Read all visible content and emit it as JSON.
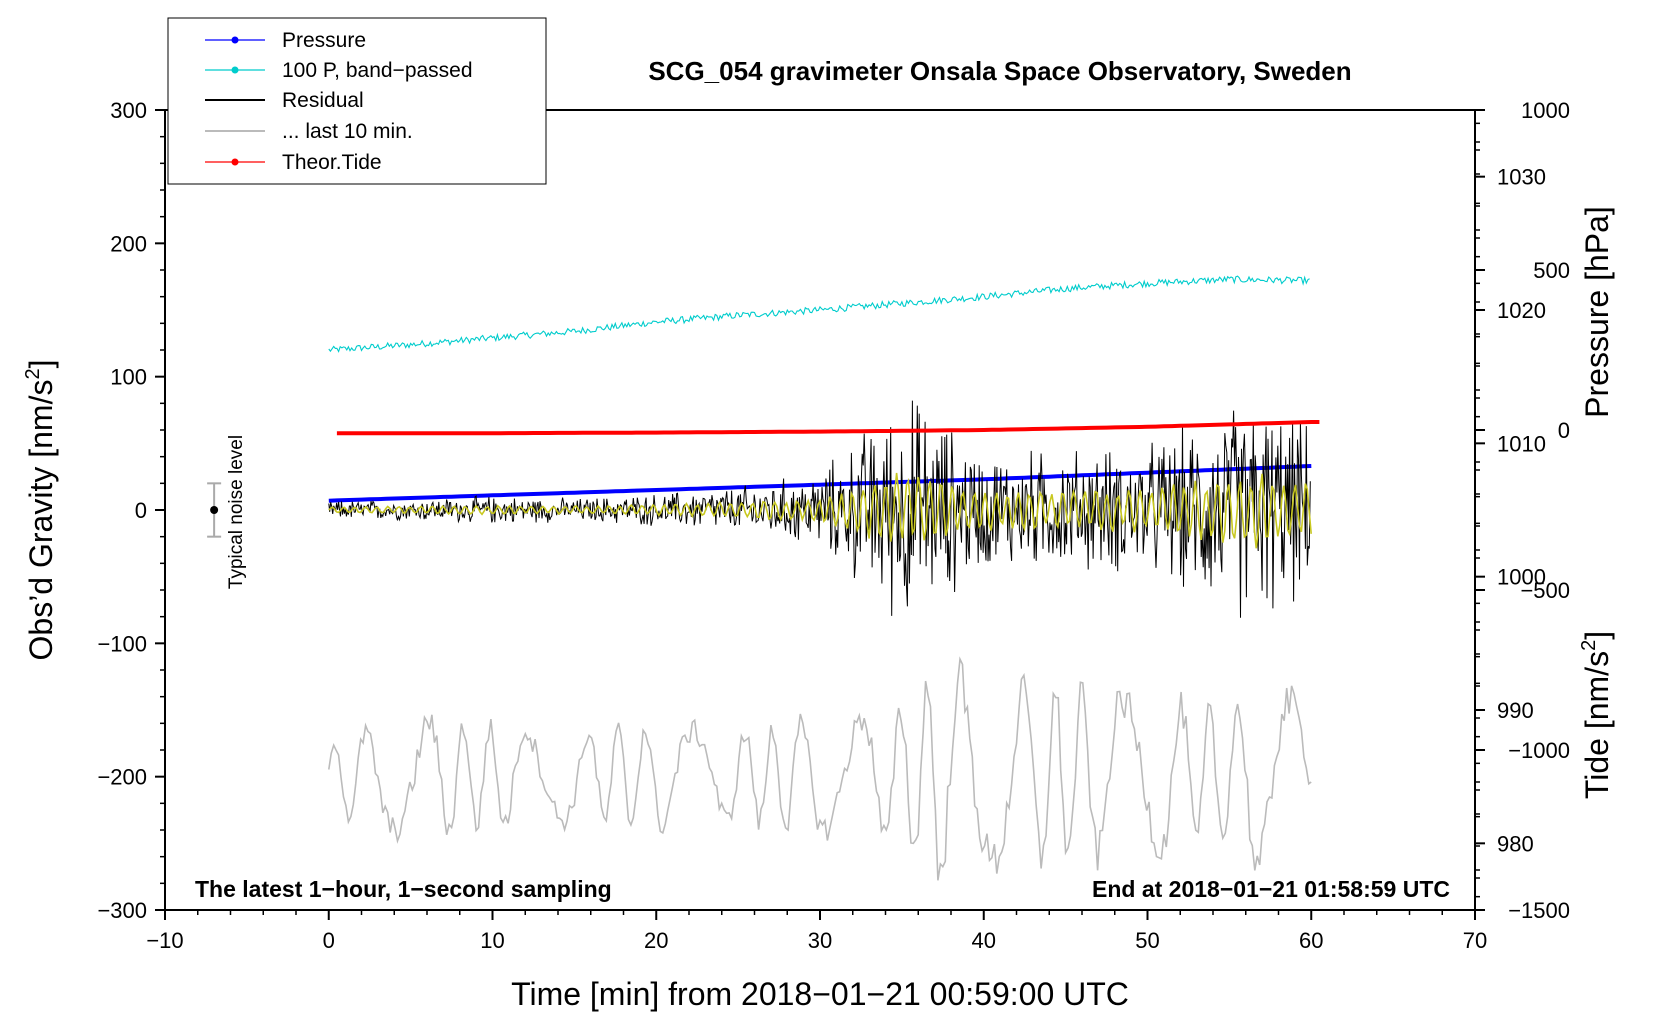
{
  "chart_data": {
    "type": "line",
    "title": "SCG_054 gravimeter Onsala Space Observatory, Sweden",
    "xlabel": "Time [min] from 2018−01−21 00:59:00 UTC",
    "ylabel_left_main": "Obs’d Gravity [nm/s",
    "ylabel_left_sup": "2",
    "ylabel_left_close": "]",
    "ylabel_right_pressure": "Pressure [hPa]",
    "ylabel_right_tide_main": "Tide [nm/s",
    "ylabel_right_tide_sup": "2",
    "ylabel_right_tide_close": "]",
    "footer_left": "The latest 1−hour, 1−second sampling",
    "footer_right": "End at 2018−01−21 01:58:59 UTC",
    "noise_label": "Typical noise level",
    "noise_level_range": [
      -20,
      20
    ],
    "noise_level_x": -7,
    "xlim": [
      -10,
      70
    ],
    "ylim": [
      -300,
      300
    ],
    "pressure_axis_range": [
      975,
      1035
    ],
    "tide_axis_range": [
      -1500,
      1000
    ],
    "x_ticks": [
      -10,
      0,
      10,
      20,
      30,
      40,
      50,
      60,
      70
    ],
    "x_tick_labels": [
      "−10",
      "0",
      "10",
      "20",
      "30",
      "40",
      "50",
      "60",
      "70"
    ],
    "y_ticks": [
      -300,
      -200,
      -100,
      0,
      100,
      200,
      300
    ],
    "y_tick_labels": [
      "−300",
      "−200",
      "−100",
      "0",
      "100",
      "200",
      "300"
    ],
    "pressure_ticks": [
      980,
      990,
      1000,
      1010,
      1020,
      1030
    ],
    "pressure_tick_labels": [
      "980",
      "990",
      "1000",
      "1010",
      "1020",
      "1030"
    ],
    "tide_ticks": [
      -1500,
      -1000,
      -500,
      0,
      500,
      1000
    ],
    "tide_tick_labels": [
      "−1500",
      "−1000",
      "−500",
      "0",
      "500",
      "1000"
    ],
    "series": [
      {
        "name": "Pressure",
        "color": "#0000ff",
        "axis": "pressure",
        "x": [
          0,
          10,
          20,
          30,
          40,
          50,
          60
        ],
        "values": [
          1005.7,
          1006.1,
          1006.5,
          1006.9,
          1007.3,
          1007.8,
          1008.3
        ]
      },
      {
        "name": "100 P, band−passed",
        "color": "#00cccc",
        "axis": "gravity",
        "x": [
          0,
          5,
          10,
          15,
          20,
          25,
          30,
          35,
          40,
          45,
          50,
          55,
          60
        ],
        "values": [
          120,
          124,
          129,
          134,
          141,
          146,
          150,
          155,
          160,
          166,
          170,
          173,
          172
        ]
      },
      {
        "name": "Residual",
        "color": "#000000",
        "axis": "gravity",
        "x": [
          0,
          5,
          10,
          15,
          20,
          25,
          30,
          34,
          35.5,
          40,
          45,
          50,
          56,
          57.5,
          60
        ],
        "amplitude": [
          8,
          9,
          12,
          10,
          14,
          20,
          32,
          85,
          100,
          50,
          52,
          55,
          95,
          90,
          70
        ]
      },
      {
        "name": "... last 10 min.",
        "color": "#bbbbbb",
        "axis": "gravity_offset",
        "offset": -200,
        "x": [
          0,
          5,
          10,
          15,
          20,
          25,
          30,
          35,
          37.5,
          40,
          45,
          50,
          55,
          57.5,
          60
        ],
        "amplitude": [
          30,
          55,
          45,
          40,
          45,
          40,
          50,
          60,
          100,
          80,
          75,
          70,
          55,
          100,
          40
        ]
      },
      {
        "name": "Theor.Tide",
        "color": "#ff0000",
        "axis": "tide",
        "x": [
          0,
          10,
          20,
          30,
          40,
          50,
          60
        ],
        "values": [
          -10,
          -10,
          -8,
          -5,
          0,
          10,
          25
        ]
      }
    ],
    "legend_position": "top-left"
  }
}
